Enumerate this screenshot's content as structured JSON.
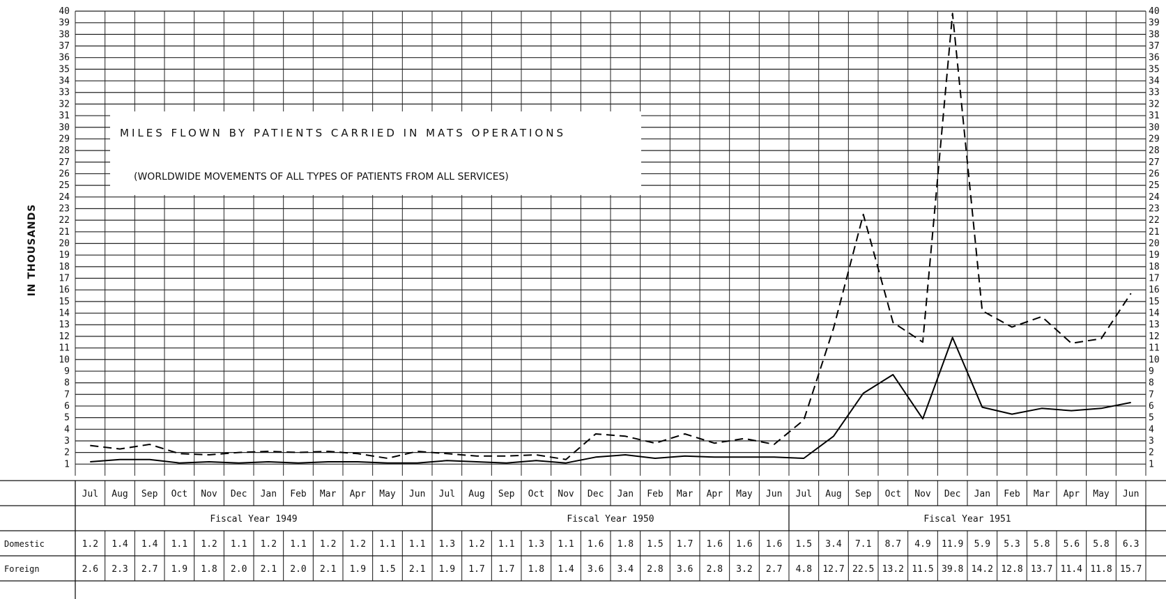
{
  "chart_data": {
    "type": "line",
    "title": "MILES FLOWN BY PATIENTS CARRIED IN MATS OPERATIONS",
    "subtitle": "(WORLDWIDE MOVEMENTS OF ALL TYPES OF PATIENTS FROM ALL SERVICES)",
    "ylabel": "IN THOUSANDS",
    "ylim": [
      0,
      40
    ],
    "yticks": [
      1,
      2,
      3,
      4,
      5,
      6,
      7,
      8,
      9,
      10,
      11,
      12,
      13,
      14,
      15,
      16,
      17,
      18,
      19,
      20,
      21,
      22,
      23,
      24,
      25,
      26,
      27,
      28,
      29,
      30,
      31,
      32,
      33,
      34,
      35,
      36,
      37,
      38,
      39,
      40
    ],
    "grid": true,
    "categories": [
      "Jul",
      "Aug",
      "Sep",
      "Oct",
      "Nov",
      "Dec",
      "Jan",
      "Feb",
      "Mar",
      "Apr",
      "May",
      "Jun",
      "Jul",
      "Aug",
      "Sep",
      "Oct",
      "Nov",
      "Dec",
      "Jan",
      "Feb",
      "Mar",
      "Apr",
      "May",
      "Jun",
      "Jul",
      "Aug",
      "Sep",
      "Oct",
      "Nov",
      "Dec",
      "Jan",
      "Feb",
      "Mar",
      "Apr",
      "May",
      "Jun"
    ],
    "fiscal_years": [
      {
        "label": "Fiscal Year 1949",
        "start": 0,
        "end": 11
      },
      {
        "label": "Fiscal Year 1950",
        "start": 12,
        "end": 23
      },
      {
        "label": "Fiscal Year 1951",
        "start": 24,
        "end": 35
      }
    ],
    "series": [
      {
        "name": "Domestic",
        "style": "solid",
        "values": [
          1.2,
          1.4,
          1.4,
          1.1,
          1.2,
          1.1,
          1.2,
          1.1,
          1.2,
          1.2,
          1.1,
          1.1,
          1.3,
          1.2,
          1.1,
          1.3,
          1.1,
          1.6,
          1.8,
          1.5,
          1.7,
          1.6,
          1.6,
          1.6,
          1.5,
          3.4,
          7.1,
          8.7,
          4.9,
          11.9,
          5.9,
          5.3,
          5.8,
          5.6,
          5.8,
          6.3
        ],
        "labels": [
          "1.2",
          "1.4",
          "1.4",
          "1.1",
          "1.2",
          "1.1",
          "1.2",
          "1.1",
          "1.2",
          "1.2",
          "1.1",
          "1.1",
          "1.3",
          "1.2",
          "1.1",
          "1.3",
          "1.1",
          "1.6",
          "1.8",
          "1.5",
          "1.7",
          "1.6",
          "1.6",
          "1.6",
          "1.5",
          "3.4",
          "7.1",
          "8.7",
          "4.9",
          "11.9",
          "5.9",
          "5.3",
          "5.8",
          "5.6",
          "5.8",
          "6.3"
        ]
      },
      {
        "name": "Foreign",
        "style": "dashed",
        "values": [
          2.6,
          2.3,
          2.7,
          1.9,
          1.8,
          2.0,
          2.1,
          2.0,
          2.1,
          1.9,
          1.5,
          2.1,
          1.9,
          1.7,
          1.7,
          1.8,
          1.4,
          3.6,
          3.4,
          2.8,
          3.6,
          2.8,
          3.2,
          2.7,
          4.8,
          12.7,
          22.5,
          13.2,
          11.5,
          39.8,
          14.2,
          12.8,
          13.7,
          11.4,
          11.8,
          15.7
        ],
        "labels": [
          "2.6",
          "2.3",
          "2.7",
          "1.9",
          "1.8",
          "2.0",
          "2.1",
          "2.0",
          "2.1",
          "1.9",
          "1.5",
          "2.1",
          "1.9",
          "1.7",
          "1.7",
          "1.8",
          "1.4",
          "3.6",
          "3.4",
          "2.8",
          "3.6",
          "2.8",
          "3.2",
          "2.7",
          "4.8",
          "12.7",
          "22.5",
          "13.2",
          "11.5",
          "39.8",
          "14.2",
          "12.8",
          "13.7",
          "11.4",
          "11.8",
          "15.7"
        ]
      }
    ]
  }
}
